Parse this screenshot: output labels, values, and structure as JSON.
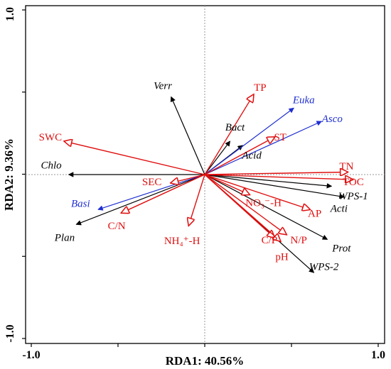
{
  "chart_data": {
    "type": "biplot",
    "title": "",
    "xlabel": "RDA1: 40.56%",
    "ylabel": "RDA2: 9.36%",
    "xlim": [
      -1.05,
      1.05
    ],
    "ylim": [
      -1.05,
      1.05
    ],
    "xticks": [
      "-1.0",
      "1.0"
    ],
    "yticks": [
      "1.0",
      "-1.0"
    ],
    "grid": false,
    "reference_lines": "dotted lines through the origin",
    "colors": {
      "taxa_black": "#000000",
      "taxa_blue": "#1f2fd0",
      "environment": "#e01010"
    },
    "vectors": [
      {
        "label": "Verr",
        "group": "taxa_black",
        "italic": true,
        "x": -0.4,
        "y": 0.935,
        "lx": -0.5,
        "ly": 1.06
      },
      {
        "label": "Bact",
        "group": "taxa_black",
        "italic": true,
        "x": 0.3,
        "y": 0.4,
        "lx": 0.36,
        "ly": 0.56
      },
      {
        "label": "Acid",
        "group": "taxa_black",
        "italic": true,
        "x": 0.45,
        "y": 0.35,
        "lx": 0.56,
        "ly": 0.22
      },
      {
        "label": "Chlo",
        "group": "taxa_black",
        "italic": true,
        "x": -1.62,
        "y": 0.0,
        "lx": -1.83,
        "ly": 0.1
      },
      {
        "label": "Plan",
        "group": "taxa_black",
        "italic": true,
        "x": -1.53,
        "y": -0.6,
        "lx": -1.67,
        "ly": -0.77
      },
      {
        "label": "WPS-1",
        "group": "taxa_black",
        "italic": true,
        "x": 1.66,
        "y": -0.27,
        "lx": 1.77,
        "ly": -0.27
      },
      {
        "label": "Acti",
        "group": "taxa_black",
        "italic": true,
        "x": 1.51,
        "y": -0.14,
        "lx": 1.6,
        "ly": -0.42
      },
      {
        "label": "Prot",
        "group": "taxa_black",
        "italic": true,
        "x": 1.46,
        "y": -0.78,
        "lx": 1.63,
        "ly": -0.9
      },
      {
        "label": "WPS-2",
        "group": "taxa_black",
        "italic": true,
        "x": 1.3,
        "y": -1.18,
        "lx": 1.42,
        "ly": -1.12
      },
      {
        "label": "Euka",
        "group": "taxa_blue",
        "italic": true,
        "x": 1.06,
        "y": 0.8,
        "lx": 1.18,
        "ly": 0.89
      },
      {
        "label": "Asco",
        "group": "taxa_blue",
        "italic": true,
        "x": 1.39,
        "y": 0.64,
        "lx": 1.52,
        "ly": 0.66
      },
      {
        "label": "Basi",
        "group": "taxa_blue",
        "italic": true,
        "x": -1.27,
        "y": -0.42,
        "lx": -1.48,
        "ly": -0.36
      },
      {
        "label": "TP",
        "group": "environment",
        "italic": false,
        "x": 0.58,
        "y": 0.96,
        "lx": 0.66,
        "ly": 1.04
      },
      {
        "label": "ST",
        "group": "environment",
        "italic": false,
        "x": 0.83,
        "y": 0.45,
        "lx": 0.9,
        "ly": 0.44
      },
      {
        "label": "SWC",
        "group": "environment",
        "italic": false,
        "x": -1.67,
        "y": 0.4,
        "lx": -1.84,
        "ly": 0.44
      },
      {
        "label": "SEC",
        "group": "environment",
        "italic": false,
        "x": -0.4,
        "y": -0.1,
        "lx": -0.63,
        "ly": -0.1
      },
      {
        "label": "C/N",
        "group": "environment",
        "italic": false,
        "x": -0.99,
        "y": -0.46,
        "lx": -1.05,
        "ly": -0.63
      },
      {
        "label": "NH₄⁺-H",
        "group": "environment",
        "italic": false,
        "x": -0.19,
        "y": -0.61,
        "lx": -0.27,
        "ly": -0.81
      },
      {
        "label": "TN",
        "group": "environment",
        "italic": false,
        "x": 1.7,
        "y": 0.03,
        "lx": 1.69,
        "ly": 0.09
      },
      {
        "label": "TOC",
        "group": "environment",
        "italic": false,
        "x": 1.76,
        "y": -0.06,
        "lx": 1.77,
        "ly": -0.1
      },
      {
        "label": "NO₃⁻-H",
        "group": "environment",
        "italic": false,
        "x": 0.53,
        "y": -0.24,
        "lx": 0.7,
        "ly": -0.35
      },
      {
        "label": "AP",
        "group": "environment",
        "italic": false,
        "x": 1.25,
        "y": -0.42,
        "lx": 1.31,
        "ly": -0.48
      },
      {
        "label": "C/P",
        "group": "environment",
        "italic": false,
        "x": 0.83,
        "y": -0.76,
        "lx": 0.77,
        "ly": -0.8
      },
      {
        "label": "N/P",
        "group": "environment",
        "italic": false,
        "x": 0.97,
        "y": -0.72,
        "lx": 1.12,
        "ly": -0.8
      },
      {
        "label": "pH",
        "group": "environment",
        "italic": false,
        "x": 0.9,
        "y": -0.8,
        "lx": 0.92,
        "ly": -1.0
      }
    ]
  }
}
